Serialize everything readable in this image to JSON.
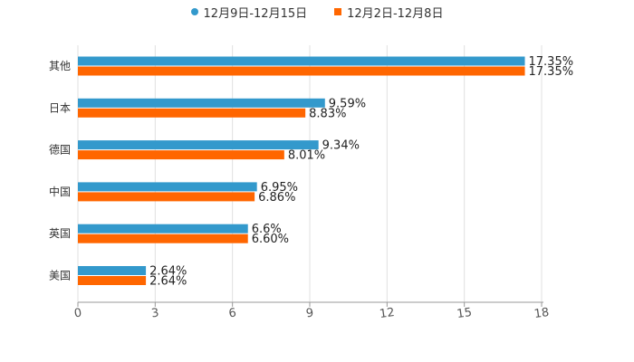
{
  "chart_data": {
    "type": "bar",
    "orientation": "horizontal",
    "categories": [
      "其他",
      "日本",
      "德国",
      "中国",
      "英国",
      "美国"
    ],
    "series": [
      {
        "name": "12月9日-12月15日",
        "values": [
          17.35,
          9.59,
          9.34,
          6.95,
          6.6,
          2.64
        ],
        "labels": [
          "17.35%",
          "9.59%",
          "9.34%",
          "6.95%",
          "6.6%",
          "2.64%"
        ],
        "color": "#3399cc",
        "marker": "circle"
      },
      {
        "name": "12月2日-12月8日",
        "values": [
          17.35,
          8.83,
          8.01,
          6.86,
          6.6,
          2.64
        ],
        "labels": [
          "17.35%",
          "8.83%",
          "8.01%",
          "6.86%",
          "6.60%",
          "2.64%"
        ],
        "color": "#ff6600",
        "marker": "square"
      }
    ],
    "xlim": [
      0,
      18
    ],
    "xticks": [
      0,
      3,
      6,
      9,
      12,
      15,
      18
    ],
    "xtick_labels": [
      "0",
      "3",
      "6",
      "9",
      "12",
      "15",
      "18"
    ],
    "grid": "vertical",
    "legend": "top-center",
    "title": "",
    "xlabel": "",
    "ylabel": ""
  }
}
